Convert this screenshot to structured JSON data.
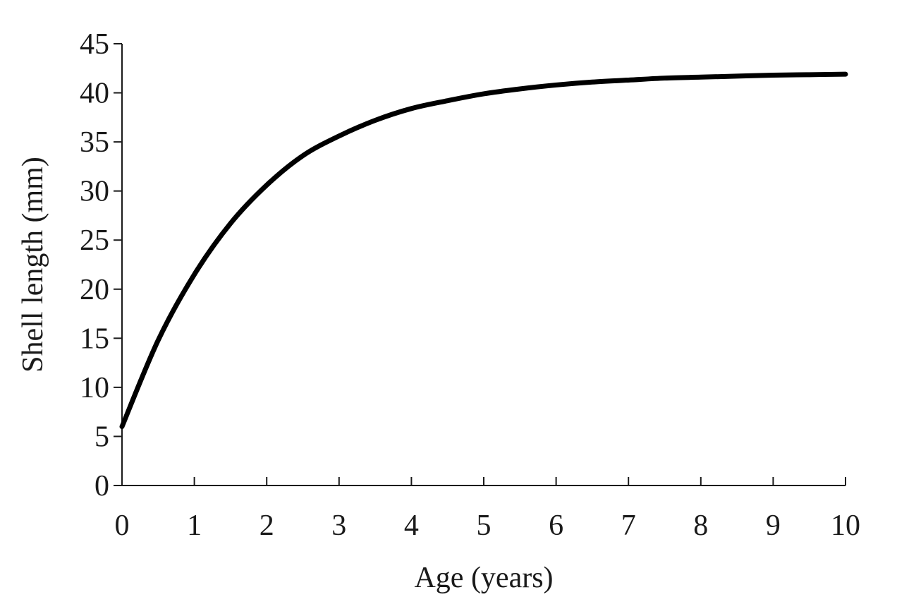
{
  "chart_data": {
    "type": "line",
    "title": "",
    "xlabel": "Age (years)",
    "ylabel": "Shell length (mm)",
    "xlim": [
      0,
      10
    ],
    "ylim": [
      0,
      45
    ],
    "x_ticks": [
      0,
      1,
      2,
      3,
      4,
      5,
      6,
      7,
      8,
      9,
      10
    ],
    "y_ticks": [
      0,
      5,
      10,
      15,
      20,
      25,
      30,
      35,
      40,
      45
    ],
    "x_tick_labels": [
      "0",
      "1",
      "2",
      "3",
      "4",
      "5",
      "6",
      "7",
      "8",
      "9",
      "10"
    ],
    "y_tick_labels": [
      "0",
      "5",
      "10",
      "15",
      "20",
      "25",
      "30",
      "35",
      "40",
      "45"
    ],
    "grid": false,
    "legend": "none",
    "series": [
      {
        "color": "#000000",
        "x": [
          0,
          0.5,
          1,
          1.5,
          2,
          2.5,
          3,
          3.5,
          4,
          4.5,
          5,
          5.5,
          6,
          6.5,
          7,
          7.5,
          8,
          8.5,
          9,
          9.5,
          10
        ],
        "y": [
          6,
          14.8,
          21.5,
          26.7,
          30.6,
          33.6,
          35.6,
          37.2,
          38.4,
          39.2,
          39.9,
          40.4,
          40.8,
          41.1,
          41.3,
          41.5,
          41.6,
          41.7,
          41.8,
          41.85,
          41.9
        ]
      }
    ]
  }
}
